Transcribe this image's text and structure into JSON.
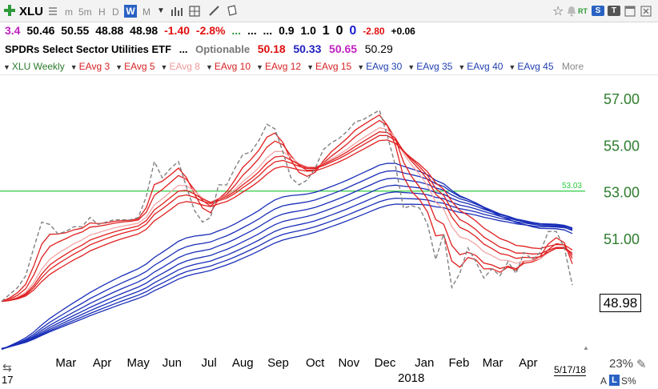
{
  "toolbar": {
    "symbol": "XLU",
    "period_buttons": [
      "m",
      "5m",
      "H",
      "D"
    ],
    "period_selected": "W",
    "period_after": "M",
    "rt_label": "RT",
    "s_label": "S",
    "t_label": "T",
    "icons": [
      "plus-icon",
      "list-icon",
      "bar-chart-icon",
      "grid-icon",
      "line-tool-icon",
      "note-icon",
      "star-icon",
      "bell-icon",
      "tile-icon",
      "close-icon"
    ]
  },
  "quote": {
    "left_number": "3.4",
    "open": "50.46",
    "high": "50.55",
    "low": "48.88",
    "close": "48.98",
    "change": "-1.40",
    "change_pct": "-2.8%",
    "dots_green": "...",
    "dots_black1": "...",
    "dots_black2": "...",
    "v1": "0.9",
    "v2": "1.0",
    "v3": "1",
    "v4": "0",
    "v5": "0",
    "v6": "-2.80",
    "v7": "+0.06"
  },
  "info": {
    "name": "SPDRs Select Sector Utilities ETF",
    "dots": "...",
    "optionable": "Optionable",
    "v1": "50.18",
    "v2": "50.33",
    "v3": "50.65",
    "v4": "50.29"
  },
  "legend": [
    {
      "label": "XLU Weekly",
      "color": "#2a7a2a"
    },
    {
      "label": "EAvg 3",
      "color": "#d62020"
    },
    {
      "label": "EAvg 5",
      "color": "#d62020"
    },
    {
      "label": "EAvg 8",
      "color": "#ef9a9a"
    },
    {
      "label": "EAvg 10",
      "color": "#d62020"
    },
    {
      "label": "EAvg 12",
      "color": "#d62020"
    },
    {
      "label": "EAvg 15",
      "color": "#d62020"
    },
    {
      "label": "EAvg 30",
      "color": "#1f3fb0"
    },
    {
      "label": "EAvg 35",
      "color": "#1f3fb0"
    },
    {
      "label": "EAvg 40",
      "color": "#1f3fb0"
    },
    {
      "label": "EAvg 45",
      "color": "#1f3fb0"
    }
  ],
  "legend_more": "More",
  "colors": {
    "price": "#808080",
    "short_avg": "#e02020",
    "short_avg_light": "#f2a6a6",
    "long_avg": "#1a2fb8",
    "hline": "#2ecc40",
    "axis_text": "#2e7d2e"
  },
  "last_price_box": "48.98",
  "footer": {
    "year": "2018",
    "left": "17",
    "date": "5/17/18",
    "zoom": "23%",
    "a": "A",
    "l": "L",
    "s": "S%"
  },
  "chart_data": {
    "type": "line",
    "title": "",
    "xlabel": "",
    "ylabel": "",
    "ylim": [
      46.5,
      58.0
    ],
    "y_ticks": [
      57.0,
      55.0,
      53.0,
      51.0
    ],
    "y_tick_labels": [
      "57.00",
      "55.00",
      "53.00",
      "51.00"
    ],
    "x_tick_labels": [
      "Mar",
      "Apr",
      "May",
      "Jun",
      "Jul",
      "Aug",
      "Sep",
      "Oct",
      "Nov",
      "Dec",
      "Jan",
      "Feb",
      "Mar",
      "Apr"
    ],
    "x_tick_weeks": [
      8,
      12.5,
      17,
      21.2,
      25.8,
      30,
      34.4,
      39,
      43.2,
      47.7,
      52.6,
      56.9,
      61.1,
      65.5
    ],
    "horizontal_line": {
      "value": 53.03,
      "label": "53.03"
    },
    "last_price": 48.98,
    "week_count": 72,
    "series": [
      {
        "label": "XLU Weekly",
        "style": "price",
        "values": [
          48.3,
          48.6,
          48.9,
          49.4,
          50.6,
          51.7,
          51.6,
          51.2,
          51.3,
          51.5,
          51.5,
          51.9,
          51.6,
          51.7,
          51.8,
          51.8,
          51.8,
          51.9,
          52.8,
          54.3,
          53.6,
          54.0,
          54.3,
          53.2,
          52.2,
          51.7,
          51.9,
          53.3,
          53.3,
          54.0,
          54.6,
          54.7,
          55.2,
          55.9,
          55.7,
          54.7,
          53.6,
          53.3,
          53.5,
          54.0,
          54.8,
          55.1,
          55.3,
          55.6,
          56.0,
          56.1,
          56.3,
          56.5,
          55.4,
          54.1,
          52.3,
          52.4,
          52.3,
          51.6,
          50.1,
          51.2,
          48.9,
          49.5,
          50.6,
          50.0,
          49.3,
          49.7,
          49.4,
          50.0,
          49.5,
          50.4,
          50.1,
          50.4,
          51.3,
          51.3,
          50.6,
          49.0
        ]
      }
    ]
  }
}
